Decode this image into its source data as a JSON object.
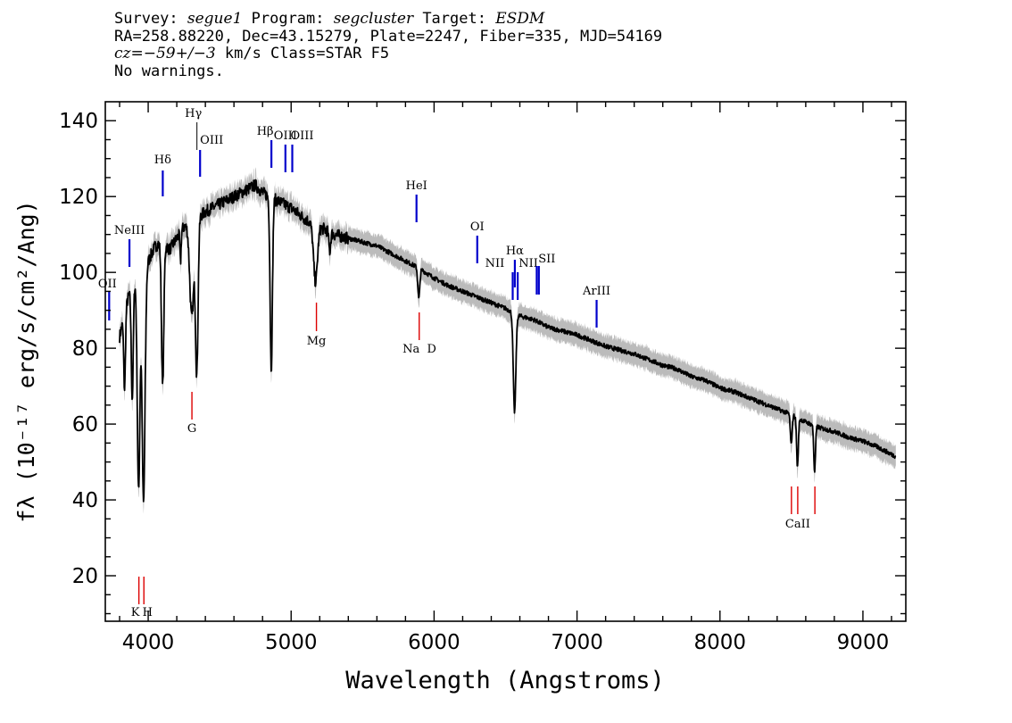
{
  "header": {
    "line1": {
      "survey_label": "Survey: ",
      "survey": "segue1",
      "program_label": " Program: ",
      "program": "segcluster",
      "target_label": " Target: ",
      "target": "ESDM"
    },
    "line2": "RA=258.88220, Dec=43.15279, Plate=2247, Fiber=335, MJD=54169",
    "line3": {
      "cz_label": "cz",
      "cz_value": "=−59+/−3",
      "cz_rest": " km/s Class=STAR F5"
    },
    "line4": "No warnings."
  },
  "chart_data": {
    "type": "line",
    "title": "",
    "xlabel": "Wavelength (Angstroms)",
    "ylabel": "fλ (10⁻¹⁷ erg/s/cm²/Ang)",
    "xlim": [
      3700,
      9300
    ],
    "ylim": [
      8,
      145
    ],
    "xticks": [
      4000,
      5000,
      6000,
      7000,
      8000,
      9000
    ],
    "xtick_labels": [
      "4000",
      "5000",
      "6000",
      "7000",
      "8000",
      "9000"
    ],
    "yticks": [
      20,
      40,
      60,
      80,
      100,
      120,
      140
    ],
    "ytick_labels": [
      "20",
      "40",
      "60",
      "80",
      "100",
      "120",
      "140"
    ],
    "grid": false,
    "colors": {
      "flux": "#000000",
      "error_band": "#bbbbbb",
      "emission": "#0000cc",
      "absorption": "#dd0000"
    },
    "continuum": [
      [
        3800,
        83
      ],
      [
        3850,
        92
      ],
      [
        3900,
        98
      ],
      [
        3950,
        97
      ],
      [
        4000,
        103
      ],
      [
        4050,
        107
      ],
      [
        4100,
        108
      ],
      [
        4150,
        106
      ],
      [
        4200,
        109
      ],
      [
        4250,
        112
      ],
      [
        4300,
        113
      ],
      [
        4400,
        116
      ],
      [
        4500,
        118
      ],
      [
        4600,
        120
      ],
      [
        4700,
        122
      ],
      [
        4750,
        123
      ],
      [
        4800,
        121
      ],
      [
        4900,
        119
      ],
      [
        5000,
        117
      ],
      [
        5100,
        114
      ],
      [
        5200,
        112
      ],
      [
        5300,
        110
      ],
      [
        5400,
        109
      ],
      [
        5500,
        108
      ],
      [
        5600,
        107
      ],
      [
        5700,
        105
      ],
      [
        5800,
        103
      ],
      [
        5900,
        101
      ],
      [
        6000,
        98.5
      ],
      [
        6100,
        96.5
      ],
      [
        6200,
        95
      ],
      [
        6300,
        93.5
      ],
      [
        6400,
        92
      ],
      [
        6500,
        90.5
      ],
      [
        6600,
        88.5
      ],
      [
        6700,
        87.5
      ],
      [
        6800,
        85.5
      ],
      [
        6900,
        84.5
      ],
      [
        7000,
        83.5
      ],
      [
        7100,
        82
      ],
      [
        7200,
        80.5
      ],
      [
        7300,
        79.5
      ],
      [
        7400,
        78.5
      ],
      [
        7500,
        77
      ],
      [
        7600,
        75.5
      ],
      [
        7700,
        74.5
      ],
      [
        7800,
        72.5
      ],
      [
        7900,
        71.5
      ],
      [
        8000,
        69.5
      ],
      [
        8100,
        68.5
      ],
      [
        8200,
        67
      ],
      [
        8300,
        65.5
      ],
      [
        8400,
        64
      ],
      [
        8500,
        62.5
      ],
      [
        8600,
        60.5
      ],
      [
        8700,
        59
      ],
      [
        8800,
        58
      ],
      [
        8900,
        56.5
      ],
      [
        9000,
        55.5
      ],
      [
        9100,
        54
      ],
      [
        9200,
        52
      ],
      [
        9230,
        51.5
      ]
    ],
    "absorption_features": [
      {
        "wave": 3835,
        "depth": 20,
        "width": 6
      },
      {
        "wave": 3889,
        "depth": 30,
        "width": 7
      },
      {
        "wave": 3933,
        "depth": 55,
        "width": 9
      },
      {
        "wave": 3968,
        "depth": 60,
        "width": 10
      },
      {
        "wave": 4101,
        "depth": 38,
        "width": 8
      },
      {
        "wave": 4226,
        "depth": 8,
        "width": 4
      },
      {
        "wave": 4305,
        "depth": 25,
        "width": 14
      },
      {
        "wave": 4340,
        "depth": 40,
        "width": 9
      },
      {
        "wave": 4861,
        "depth": 45,
        "width": 8
      },
      {
        "wave": 5170,
        "depth": 15,
        "width": 14
      },
      {
        "wave": 5270,
        "depth": 5,
        "width": 6
      },
      {
        "wave": 5893,
        "depth": 8,
        "width": 7
      },
      {
        "wave": 6563,
        "depth": 26,
        "width": 9
      },
      {
        "wave": 8498,
        "depth": 8,
        "width": 6
      },
      {
        "wave": 8542,
        "depth": 13,
        "width": 6
      },
      {
        "wave": 8662,
        "depth": 12,
        "width": 6
      }
    ],
    "emission_lines": [
      {
        "label": "OII",
        "wave": 3727
      },
      {
        "label": "NeIII",
        "wave": 3869
      },
      {
        "label": "Hδ",
        "wave": 4102
      },
      {
        "label": "Hγ",
        "wave": 4341
      },
      {
        "label": "OIII",
        "wave": 4363
      },
      {
        "label": "Hβ",
        "wave": 4862
      },
      {
        "label": "OIII",
        "wave": 4960
      },
      {
        "label": "OIII",
        "wave": 5008
      },
      {
        "label": "HeI",
        "wave": 5877
      },
      {
        "label": "OI",
        "wave": 6302
      },
      {
        "label": "NII",
        "wave": 6550
      },
      {
        "label": "Hα",
        "wave": 6565
      },
      {
        "label": "NII",
        "wave": 6585
      },
      {
        "label": "SII",
        "wave": 6718
      },
      {
        "label": "SII",
        "wave": 6733
      },
      {
        "label": "ArIII",
        "wave": 7137
      }
    ],
    "absorption_lines": [
      {
        "label": "K",
        "wave": 3935
      },
      {
        "label": "H",
        "wave": 3970
      },
      {
        "label": "G",
        "wave": 4306
      },
      {
        "label": "Mg",
        "wave": 5177
      },
      {
        "label": "Na",
        "wave": 5896
      },
      {
        "label": "D",
        "wave": 5896
      },
      {
        "label": "CaII",
        "wave": 8500
      },
      {
        "label": "CaII",
        "wave": 8544
      },
      {
        "label": "CaII",
        "wave": 8664
      }
    ]
  }
}
